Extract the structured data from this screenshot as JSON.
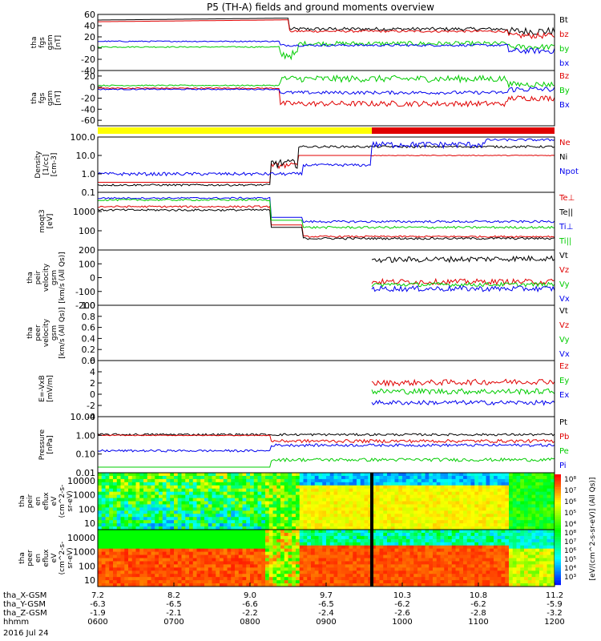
{
  "title": "P5 (TH-A) fields and ground moments overview",
  "date": "2016 Jul 24",
  "colors": {
    "black": "#000000",
    "red": "#e00000",
    "green": "#00cc00",
    "blue": "#0000ee",
    "yellow": "#ffff00"
  },
  "xaxis": {
    "labels": [
      "tha_X-GSM",
      "tha_Y-GSM",
      "tha_Z-GSM",
      "hhmm"
    ],
    "ticks": [
      {
        "vals": [
          "7.2",
          "-6.3",
          "-1.9",
          "0600"
        ]
      },
      {
        "vals": [
          "8.2",
          "-6.5",
          "-2.1",
          "0700"
        ]
      },
      {
        "vals": [
          "9.0",
          "-6.6",
          "-2.2",
          "0800"
        ]
      },
      {
        "vals": [
          "9.7",
          "-6.5",
          "-2.4",
          "0900"
        ]
      },
      {
        "vals": [
          "10.3",
          "-6.2",
          "-2.6",
          "1000"
        ]
      },
      {
        "vals": [
          "10.8",
          "-6.2",
          "-2.8",
          "1100"
        ]
      },
      {
        "vals": [
          "11.2",
          "-5.9",
          "-3.2",
          "1200"
        ]
      }
    ]
  },
  "chart_data": [
    {
      "type": "line",
      "ylabel": [
        "tha",
        "fgs",
        "gsm",
        "[nT]"
      ],
      "scale": "linear",
      "ylim": [
        -40,
        60
      ],
      "ticks": [
        "60",
        "40",
        "20",
        "0",
        "-20",
        "-40"
      ],
      "series": [
        {
          "name": "Bt",
          "color": "black"
        },
        {
          "name": "bz",
          "color": "red"
        },
        {
          "name": "by",
          "color": "green"
        },
        {
          "name": "bx",
          "color": "blue"
        }
      ]
    },
    {
      "type": "line",
      "ylabel": [
        "tha",
        "fgs",
        "gsm",
        "[nT]"
      ],
      "scale": "linear",
      "ylim": [
        -70,
        30
      ],
      "ticks": [
        "20",
        "0",
        "-20",
        "-40",
        "-60"
      ],
      "series": [
        {
          "name": "Bz",
          "color": "red"
        },
        {
          "name": "By",
          "color": "green"
        },
        {
          "name": "Bx",
          "color": "blue"
        }
      ]
    },
    {
      "type": "line",
      "ylabel": [
        "Density",
        "[1/cc]",
        "[cm-3]"
      ],
      "scale": "log",
      "ylim": [
        0.1,
        100
      ],
      "ticks": [
        "100.0",
        "10.0",
        "1.0",
        "0.1"
      ],
      "series": [
        {
          "name": "Ne",
          "color": "red"
        },
        {
          "name": "Ni",
          "color": "black"
        },
        {
          "name": "Npot",
          "color": "blue"
        }
      ]
    },
    {
      "type": "line",
      "ylabel": [
        "moqt3",
        "[eV]"
      ],
      "scale": "log",
      "ylim": [
        10,
        10000
      ],
      "ticks": [
        "1000",
        "100"
      ],
      "series": [
        {
          "name": "Te⊥",
          "color": "red"
        },
        {
          "name": "Te||",
          "color": "black"
        },
        {
          "name": "Ti⊥",
          "color": "blue"
        },
        {
          "name": "Ti||",
          "color": "green"
        }
      ]
    },
    {
      "type": "line",
      "ylabel": [
        "tha",
        "peir",
        "velocity",
        "gsm",
        "[km/s (All Qs)]"
      ],
      "scale": "linear",
      "ylim": [
        -200,
        200
      ],
      "ticks": [
        "200",
        "100",
        "0",
        "-100",
        "-200"
      ],
      "series": [
        {
          "name": "Vt",
          "color": "black"
        },
        {
          "name": "Vz",
          "color": "red"
        },
        {
          "name": "Vy",
          "color": "green"
        },
        {
          "name": "Vx",
          "color": "blue"
        }
      ]
    },
    {
      "type": "line",
      "ylabel": [
        "tha",
        "peer",
        "velocity",
        "gsm",
        "[km/s (All Qs)]"
      ],
      "scale": "linear",
      "ylim": [
        0,
        1
      ],
      "ticks": [
        "1.0",
        "0.8",
        "0.6",
        "0.4",
        "0.2",
        "0.0"
      ],
      "series": [
        {
          "name": "Vt",
          "color": "black"
        },
        {
          "name": "Vz",
          "color": "red"
        },
        {
          "name": "Vy",
          "color": "green"
        },
        {
          "name": "Vx",
          "color": "blue"
        }
      ]
    },
    {
      "type": "line",
      "ylabel": [
        "E=-VxB",
        "[mV/m]"
      ],
      "scale": "linear",
      "ylim": [
        -4,
        6
      ],
      "ticks": [
        "6",
        "4",
        "2",
        "0",
        "-2",
        "-4"
      ],
      "series": [
        {
          "name": "Ez",
          "color": "red"
        },
        {
          "name": "Ey",
          "color": "green"
        },
        {
          "name": "Ex",
          "color": "blue"
        }
      ]
    },
    {
      "type": "line",
      "ylabel": [
        "Pressure",
        "[nPa]"
      ],
      "scale": "log",
      "ylim": [
        0.01,
        10
      ],
      "ticks": [
        "10.00",
        "1.00",
        "0.10",
        "0.01"
      ],
      "series": [
        {
          "name": "Pt",
          "color": "black"
        },
        {
          "name": "Pb",
          "color": "red"
        },
        {
          "name": "Pe",
          "color": "green"
        },
        {
          "name": "Pi",
          "color": "blue"
        }
      ]
    },
    {
      "type": "heatmap",
      "ylabel": [
        "tha",
        "peir",
        "en",
        "eflux",
        "eV",
        "(cm^2-s-",
        "sr-eV)"
      ],
      "scale": "log",
      "ticks": [
        "10000",
        "1000",
        "100",
        "10"
      ]
    },
    {
      "type": "heatmap",
      "ylabel": [
        "tha",
        "peer",
        "en",
        "eflux",
        "eV",
        "(cm^2-s-",
        "sr-eV)"
      ],
      "scale": "log",
      "ticks": [
        "10000",
        "1000",
        "100",
        "10"
      ]
    }
  ],
  "colorbar": {
    "label": "[eV/(cm^2-s-sr-eV)] (All Qs)]",
    "upper": [
      "10⁸",
      "10⁷",
      "10⁶",
      "10⁵",
      "10⁴"
    ],
    "lower": [
      "10⁸",
      "10⁷",
      "10⁶",
      "10⁵",
      "10⁴",
      "10³"
    ]
  }
}
